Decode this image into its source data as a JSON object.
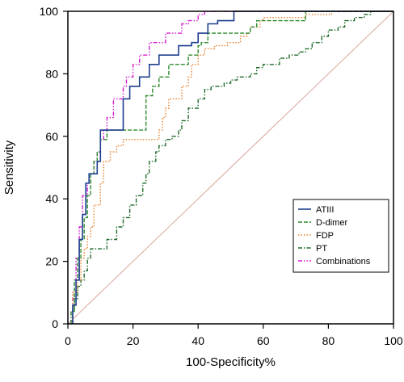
{
  "chart_data": {
    "type": "line",
    "xlabel": "100-Specificity%",
    "ylabel": "Sensitivity",
    "xlim": [
      0,
      100
    ],
    "ylim": [
      0,
      100
    ],
    "x_ticks": [
      0,
      20,
      40,
      60,
      80,
      100
    ],
    "y_ticks": [
      0,
      20,
      40,
      60,
      80,
      100
    ],
    "grid": false,
    "legend_position": "bottom-right",
    "reference_line": {
      "x": [
        0,
        100
      ],
      "y": [
        0,
        100
      ],
      "color": "#d9a79c"
    },
    "series": [
      {
        "name": "ATIII",
        "color": "#1f3f8f",
        "dash": "solid",
        "x": [
          1.5,
          1.5,
          2.5,
          2.5,
          3.5,
          3.5,
          4.5,
          4.5,
          5.5,
          5.5,
          6.5,
          6.5,
          9,
          9,
          10,
          10,
          17,
          17,
          19,
          19,
          22,
          22,
          25,
          25,
          28,
          28,
          34,
          34,
          38,
          38,
          40,
          40,
          43,
          43,
          46,
          46,
          51,
          51,
          100
        ],
        "y": [
          0,
          6,
          6,
          14,
          14,
          27,
          27,
          35,
          35,
          45,
          45,
          48,
          48,
          52,
          52,
          62,
          62,
          72,
          72,
          76,
          76,
          79,
          79,
          83,
          83,
          86,
          86,
          89,
          89,
          90,
          90,
          93,
          93,
          96,
          96,
          97,
          97,
          100,
          100
        ]
      },
      {
        "name": "D-dimer",
        "color": "#2e8b2e",
        "dash": "dashed",
        "x": [
          1.5,
          1.5,
          2,
          2,
          3,
          3,
          4,
          4,
          5,
          5,
          6,
          6,
          7,
          7,
          8,
          8,
          9,
          9,
          10,
          10,
          12,
          12,
          24,
          24,
          26,
          26,
          28,
          28,
          31,
          31,
          37,
          37,
          40,
          40,
          41,
          41,
          43,
          43,
          56,
          56,
          58,
          58,
          73,
          73,
          100
        ],
        "y": [
          0,
          4,
          4,
          14,
          14,
          21,
          21,
          27,
          27,
          34,
          34,
          41,
          41,
          48,
          48,
          52,
          52,
          55,
          55,
          59,
          59,
          62,
          62,
          73,
          73,
          76,
          76,
          79,
          79,
          83,
          83,
          86,
          86,
          89,
          89,
          90,
          90,
          93,
          93,
          95,
          95,
          97,
          97,
          100,
          100
        ]
      },
      {
        "name": "FDP",
        "color": "#e8812a",
        "dash": "dotted",
        "x": [
          1.5,
          1.5,
          3,
          3,
          4,
          4,
          5,
          5,
          6,
          6,
          7,
          7,
          8,
          8,
          10,
          10,
          11,
          11,
          13,
          13,
          15,
          15,
          17,
          17,
          19,
          19,
          28,
          28,
          29,
          29,
          30,
          30,
          31,
          31,
          35,
          35,
          37,
          37,
          38,
          38,
          40,
          40,
          42,
          42,
          45,
          45,
          49,
          49,
          53,
          53,
          55,
          55,
          56,
          56,
          59,
          59,
          60,
          60,
          73,
          73,
          74,
          74,
          80,
          80,
          81,
          81,
          100
        ],
        "y": [
          0,
          10,
          10,
          14,
          14,
          21,
          21,
          24,
          24,
          28,
          28,
          31,
          31,
          38,
          38,
          45,
          45,
          52,
          52,
          55,
          55,
          57,
          57,
          59,
          59,
          59,
          59,
          62,
          62,
          66,
          66,
          69,
          69,
          72,
          72,
          76,
          76,
          79,
          79,
          83,
          83,
          86,
          86,
          88,
          88,
          89,
          89,
          90,
          90,
          92,
          92,
          93,
          93,
          95,
          95,
          97,
          97,
          98,
          98,
          99,
          99,
          99,
          99,
          99,
          99,
          100,
          100
        ]
      },
      {
        "name": "PT",
        "color": "#1f6b2a",
        "dash": "dashdot",
        "x": [
          1,
          1,
          2,
          2,
          3,
          3,
          4,
          4,
          5,
          5,
          6,
          6,
          7,
          7,
          9,
          9,
          10,
          10,
          12,
          12,
          15,
          15,
          17,
          17,
          19,
          19,
          21,
          21,
          23,
          23,
          24,
          24,
          25,
          25,
          27,
          27,
          28,
          28,
          30,
          30,
          32,
          32,
          34,
          34,
          35,
          35,
          37,
          37,
          40,
          40,
          42,
          42,
          44,
          44,
          46,
          46,
          48,
          48,
          50,
          50,
          52,
          52,
          54,
          54,
          56,
          56,
          58,
          58,
          60,
          60,
          65,
          65,
          68,
          68,
          71,
          71,
          73,
          73,
          75,
          75,
          78,
          78,
          80,
          80,
          83,
          83,
          85,
          85,
          88,
          88,
          91,
          91,
          93,
          93,
          100
        ],
        "y": [
          0,
          4,
          4,
          8,
          8,
          12,
          12,
          14,
          14,
          17,
          17,
          21,
          21,
          24,
          24,
          24,
          24,
          24,
          24,
          27,
          27,
          31,
          31,
          34,
          34,
          38,
          38,
          41,
          41,
          45,
          45,
          48,
          48,
          52,
          52,
          55,
          55,
          57,
          57,
          59,
          59,
          60,
          60,
          62,
          62,
          65,
          65,
          69,
          69,
          72,
          72,
          75,
          75,
          76,
          76,
          76,
          76,
          77,
          77,
          78,
          78,
          79,
          79,
          79,
          79,
          80,
          80,
          82,
          82,
          83,
          83,
          85,
          85,
          86,
          86,
          87,
          87,
          88,
          88,
          90,
          90,
          92,
          92,
          94,
          94,
          95,
          95,
          97,
          97,
          98,
          98,
          99,
          99,
          100,
          100
        ]
      },
      {
        "name": "Combinations",
        "color": "#d21fcf",
        "dash": "dashdotdot",
        "x": [
          1.5,
          1.5,
          2.5,
          2.5,
          3.5,
          3.5,
          4.5,
          4.5,
          6,
          6,
          7,
          7,
          8,
          8,
          9,
          9,
          10,
          10,
          11,
          11,
          12,
          12,
          14,
          14,
          17,
          17,
          18,
          18,
          20,
          20,
          22,
          22,
          25,
          25,
          28,
          28,
          30,
          30,
          35,
          35,
          37,
          37,
          40,
          40,
          42,
          42,
          100
        ],
        "y": [
          0,
          10,
          10,
          21,
          21,
          31,
          31,
          41,
          41,
          45,
          45,
          48,
          48,
          52,
          52,
          55,
          55,
          59,
          59,
          62,
          62,
          66,
          66,
          72,
          72,
          76,
          76,
          79,
          79,
          83,
          83,
          86,
          86,
          90,
          90,
          90,
          90,
          93,
          93,
          96,
          96,
          97,
          97,
          99,
          99,
          100,
          100
        ]
      }
    ]
  }
}
